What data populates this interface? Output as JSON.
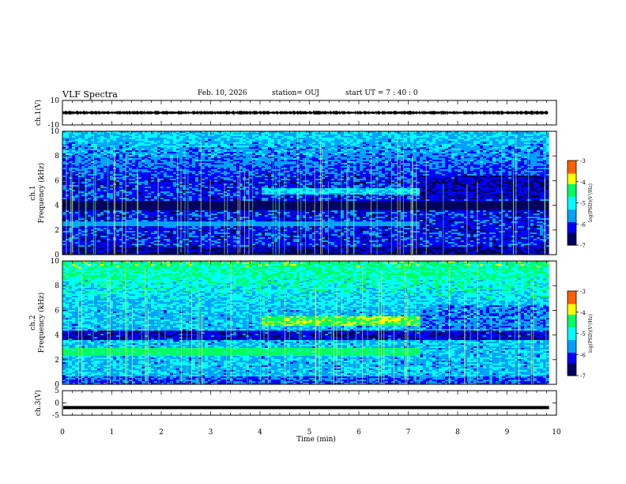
{
  "header": {
    "title": "VLF Spectra",
    "date": "Feb. 10, 2026",
    "station": "station= OUJ",
    "start": "start  UT  =   7 : 40 : 0"
  },
  "colors": {
    "trace": "#000000",
    "colormap": [
      "#000060",
      "#0000ff",
      "#00a0ff",
      "#00ffff",
      "#00ff60",
      "#ffff00",
      "#ff6000",
      "#d00000",
      "#ffffff"
    ]
  },
  "chart_data": [
    {
      "type": "line",
      "panel": "ch1-waveform",
      "ylabel": "ch.1(V)",
      "ylim": [
        -10,
        10
      ],
      "yticks": [
        "10",
        "-10"
      ],
      "xlim": [
        0,
        10
      ],
      "series": [
        {
          "name": "ch.1",
          "mean": 0,
          "amplitude": 1.2
        }
      ]
    },
    {
      "type": "heatmap",
      "panel": "ch1-spectrogram",
      "ylabel": "ch.1\nFrequency  (kHz)",
      "ylim": [
        0,
        10
      ],
      "yticks": [
        "0",
        "2",
        "4",
        "6",
        "8",
        "10"
      ],
      "xlim": [
        0,
        9.85
      ],
      "colorbar": {
        "label": "log(PSD)(V²/Hz)",
        "range": [
          -7,
          -3
        ],
        "ticks": [
          "-3",
          "-4",
          "-5",
          "-6",
          "-7"
        ]
      },
      "features": [
        {
          "name": "band 4-6 kHz",
          "x": [
            4.0,
            7.2
          ],
          "freq": [
            4.9,
            5.4
          ],
          "value": -5.2
        },
        {
          "name": "band 2.5 kHz",
          "x": [
            0,
            7.2
          ],
          "freq": [
            2.4,
            2.8
          ],
          "value": -5.6
        }
      ]
    },
    {
      "type": "heatmap",
      "panel": "ch2-spectrogram",
      "ylabel": "ch.2\nFrequency  (kHz)",
      "ylim": [
        0,
        10
      ],
      "yticks": [
        "0",
        "2",
        "4",
        "6",
        "8",
        "10"
      ],
      "xlim": [
        0,
        9.85
      ],
      "colorbar": {
        "label": "log(PSD)(V²/Hz)",
        "range": [
          -7,
          -3
        ],
        "ticks": [
          "-3",
          "-4",
          "-5",
          "-6",
          "-7"
        ]
      },
      "features": [
        {
          "name": "band 5 kHz",
          "x": [
            4.0,
            7.2
          ],
          "freq": [
            4.8,
            5.6
          ],
          "value": -4.2
        },
        {
          "name": "band 2.7 kHz",
          "x": [
            0,
            7.2
          ],
          "freq": [
            2.4,
            3.0
          ],
          "value": -4.5
        }
      ]
    },
    {
      "type": "line",
      "panel": "ch3-waveform",
      "ylabel": "ch.3(V)",
      "ylim": [
        -5,
        5
      ],
      "yticks": [
        "5",
        "0",
        "-5"
      ],
      "xlim": [
        0,
        10
      ],
      "series": [
        {
          "name": "ch.3",
          "mean": -1.5,
          "amplitude": 0.25
        }
      ]
    }
  ],
  "xaxis": {
    "label": "Time  (min)",
    "ticks": [
      "0",
      "1",
      "2",
      "3",
      "4",
      "5",
      "6",
      "7",
      "8",
      "9",
      "10"
    ]
  }
}
